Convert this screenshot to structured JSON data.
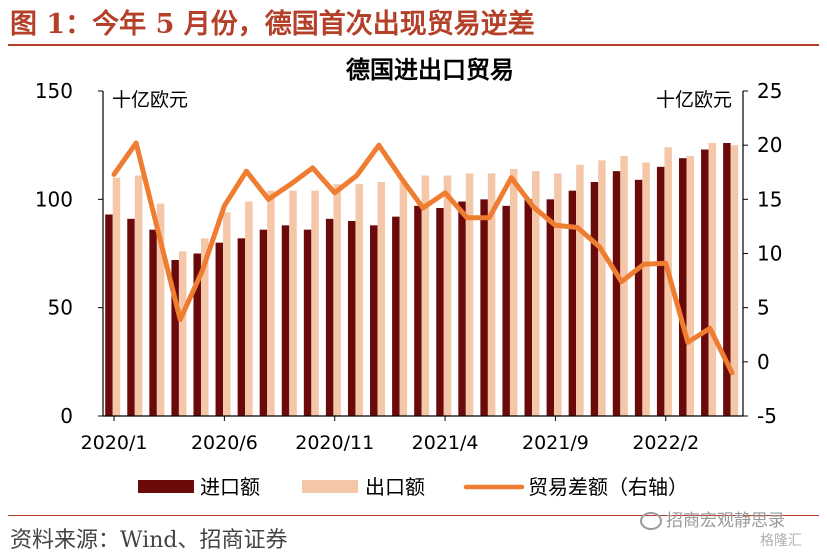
{
  "figure": {
    "title": "图 1：今年 5 月份，德国首次出现贸易逆差",
    "source": "资料来源：Wind、招商证券",
    "watermark": "招商宏观静思录",
    "watermark2": "格隆汇"
  },
  "chart_data": {
    "type": "bar",
    "title": "德国进出口贸易",
    "left_unit": "十亿欧元",
    "right_unit": "十亿欧元",
    "ylim_left": [
      0,
      150
    ],
    "yticks_left": [
      0,
      50,
      100,
      150
    ],
    "ylim_right": [
      -5,
      25
    ],
    "yticks_right": [
      -5,
      0,
      5,
      10,
      15,
      20,
      25
    ],
    "x_tick_labels": [
      "2020/1",
      "2020/6",
      "2020/11",
      "2021/4",
      "2021/9",
      "2022/2"
    ],
    "categories": [
      "2020/1",
      "2020/2",
      "2020/3",
      "2020/4",
      "2020/5",
      "2020/6",
      "2020/7",
      "2020/8",
      "2020/9",
      "2020/10",
      "2020/11",
      "2020/12",
      "2021/1",
      "2021/2",
      "2021/3",
      "2021/4",
      "2021/5",
      "2021/6",
      "2021/7",
      "2021/8",
      "2021/9",
      "2021/10",
      "2021/11",
      "2021/12",
      "2022/1",
      "2022/2",
      "2022/3",
      "2022/4",
      "2022/5"
    ],
    "legend": [
      "进口额",
      "出口额",
      "贸易差额（右轴）"
    ],
    "colors": {
      "imports": "#6b0a0a",
      "exports": "#f5c7a9",
      "balance": "#ef7d31"
    },
    "series": [
      {
        "name": "进口额",
        "axis": "left",
        "values": [
          93,
          91,
          86,
          72,
          75,
          80,
          82,
          86,
          88,
          86,
          91,
          90,
          88,
          92,
          97,
          96,
          99,
          100,
          97,
          100,
          100,
          104,
          108,
          113,
          109,
          115,
          119,
          123,
          126
        ]
      },
      {
        "name": "出口额",
        "axis": "left",
        "values": [
          110,
          111,
          98,
          76,
          82,
          94,
          99,
          104,
          104,
          104,
          107,
          107,
          108,
          108,
          111,
          111,
          112,
          112,
          114,
          113,
          112,
          116,
          118,
          120,
          117,
          124,
          120,
          126,
          125
        ]
      },
      {
        "name": "贸易差额（右轴）",
        "axis": "right",
        "values": [
          17.3,
          20.2,
          12.0,
          3.9,
          8.4,
          14.4,
          17.6,
          15.0,
          16.4,
          17.9,
          15.6,
          17.2,
          20.0,
          17.0,
          14.2,
          15.6,
          13.3,
          13.3,
          17.0,
          14.3,
          12.6,
          12.4,
          10.6,
          7.4,
          9.0,
          9.1,
          1.8,
          3.1,
          -1.0
        ]
      }
    ],
    "grid": false,
    "legend_position": "bottom"
  }
}
